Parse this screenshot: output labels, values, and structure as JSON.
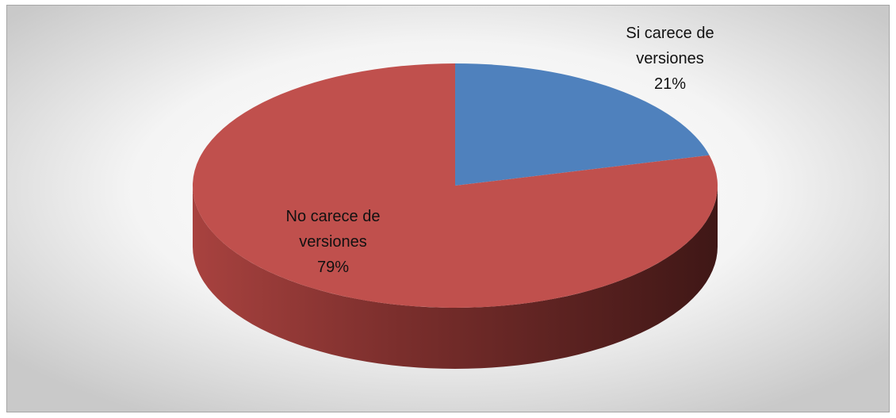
{
  "chart_data": {
    "type": "pie",
    "categories": [
      "Si carece de versiones",
      "No carece de versiones"
    ],
    "values": [
      21,
      79
    ],
    "value_labels": [
      "21%",
      "79%"
    ],
    "colors": [
      "#4f81bd",
      "#c0504d"
    ]
  }
}
